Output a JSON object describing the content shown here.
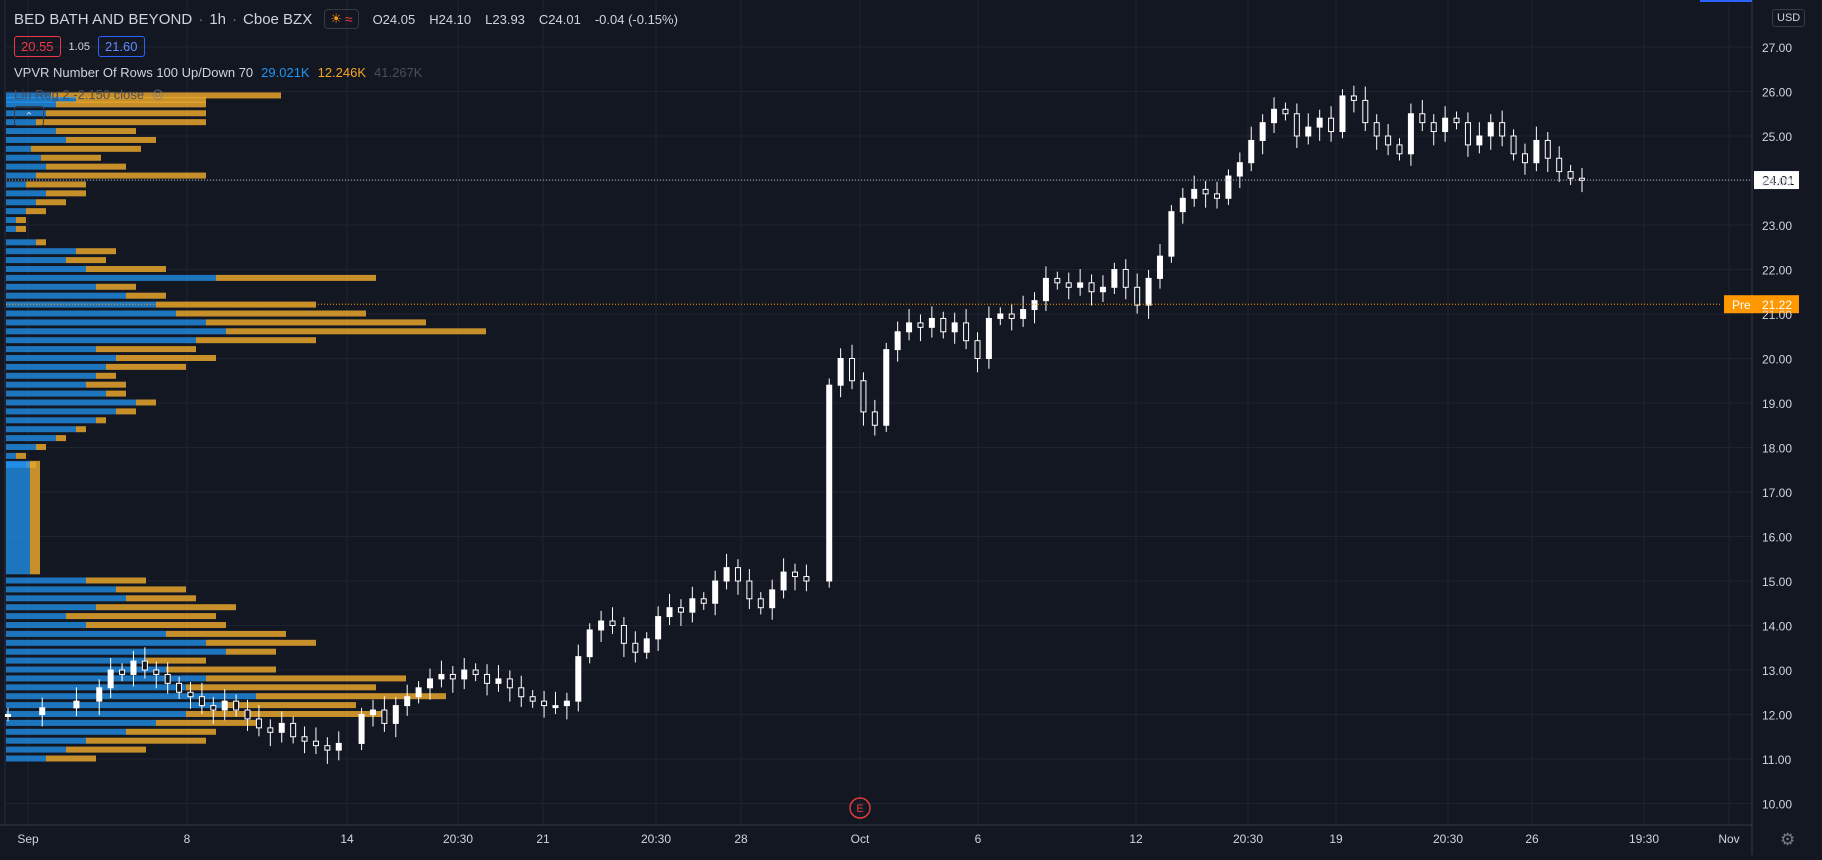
{
  "header": {
    "symbol_name": "BED BATH AND BEYOND",
    "interval": "1h",
    "exchange": "Cboe BZX",
    "ohlc": {
      "open": "O24.05",
      "high": "H24.10",
      "low": "L23.93",
      "close": "C24.01",
      "change": "-0.04 (-0.15%)"
    },
    "bid": "20.55",
    "spread": "1.05",
    "ask": "21.60",
    "session_icons": [
      "sun-icon",
      "wave-icon"
    ]
  },
  "indicators": {
    "vpvr": {
      "label": "VPVR Number Of Rows 100 Up/Down 70",
      "up_volume": "29.021K",
      "down_volume": "12.246K",
      "total_volume": "41.267K"
    },
    "linreg": {
      "label": "Lin Reg 2 -2.150 close",
      "hidden": true
    }
  },
  "price_axis": {
    "currency": "USD",
    "ticks": [
      "27.00",
      "26.00",
      "25.00",
      "24.00",
      "23.00",
      "22.00",
      "21.00",
      "20.00",
      "19.00",
      "18.00",
      "17.00",
      "16.00",
      "15.00",
      "14.00",
      "13.00",
      "12.00",
      "11.00",
      "10.00"
    ],
    "last_price_label": "24.01",
    "pre_label": "Pre",
    "pre_price_label": "21.22"
  },
  "time_axis": {
    "ticks": [
      "Sep",
      "8",
      "14",
      "20:30",
      "21",
      "20:30",
      "28",
      "Oct",
      "6",
      "12",
      "20:30",
      "19",
      "20:30",
      "26",
      "19:30",
      "Nov"
    ]
  },
  "earnings_marker": "E",
  "colors": {
    "background": "#131722",
    "grid": "#1f2330",
    "candle": "#ffffff",
    "vp_up": "#2196f3",
    "vp_down": "#e6a52a",
    "pre_market": "#ff9800",
    "earnings": "#e03c3c"
  },
  "chart_data": {
    "type": "candlestick",
    "title": "BED BATH AND BEYOND · 1h · Cboe BZX",
    "ylim": [
      9.8,
      27.4
    ],
    "last_price": 24.01,
    "pre_market_price": 21.22,
    "close_path": [
      [
        1,
        12.0
      ],
      [
        4,
        12.15
      ],
      [
        7,
        12.3
      ],
      [
        9,
        12.6
      ],
      [
        10,
        13.0
      ],
      [
        11,
        12.9
      ],
      [
        12,
        13.2
      ],
      [
        13,
        13.0
      ],
      [
        14,
        12.9
      ],
      [
        15,
        12.7
      ],
      [
        16,
        12.5
      ],
      [
        17,
        12.4
      ],
      [
        18,
        12.2
      ],
      [
        19,
        12.1
      ],
      [
        20,
        12.3
      ],
      [
        21,
        12.1
      ],
      [
        22,
        11.9
      ],
      [
        23,
        11.7
      ],
      [
        24,
        11.6
      ],
      [
        25,
        11.8
      ],
      [
        26,
        11.5
      ],
      [
        27,
        11.4
      ],
      [
        28,
        11.3
      ],
      [
        29,
        11.2
      ],
      [
        30,
        11.35
      ],
      [
        32,
        12.0
      ],
      [
        33,
        12.1
      ],
      [
        34,
        11.8
      ],
      [
        35,
        12.2
      ],
      [
        36,
        12.4
      ],
      [
        37,
        12.6
      ],
      [
        38,
        12.8
      ],
      [
        39,
        12.9
      ],
      [
        40,
        12.8
      ],
      [
        41,
        13.0
      ],
      [
        42,
        12.9
      ],
      [
        43,
        12.7
      ],
      [
        44,
        12.8
      ],
      [
        45,
        12.6
      ],
      [
        46,
        12.4
      ],
      [
        47,
        12.3
      ],
      [
        48,
        12.2
      ],
      [
        49,
        12.2
      ],
      [
        50,
        12.3
      ],
      [
        51,
        13.3
      ],
      [
        52,
        13.9
      ],
      [
        53,
        14.1
      ],
      [
        54,
        14.0
      ],
      [
        55,
        13.6
      ],
      [
        56,
        13.4
      ],
      [
        57,
        13.7
      ],
      [
        58,
        14.2
      ],
      [
        59,
        14.4
      ],
      [
        60,
        14.3
      ],
      [
        61,
        14.6
      ],
      [
        62,
        14.5
      ],
      [
        63,
        15.0
      ],
      [
        64,
        15.3
      ],
      [
        65,
        15.0
      ],
      [
        66,
        14.6
      ],
      [
        67,
        14.4
      ],
      [
        68,
        14.8
      ],
      [
        69,
        15.2
      ],
      [
        70,
        15.1
      ],
      [
        71,
        15.0
      ],
      [
        73,
        19.4
      ],
      [
        74,
        20.0
      ],
      [
        75,
        19.5
      ],
      [
        76,
        18.8
      ],
      [
        77,
        18.5
      ],
      [
        78,
        20.2
      ],
      [
        79,
        20.6
      ],
      [
        80,
        20.8
      ],
      [
        81,
        20.7
      ],
      [
        82,
        20.9
      ],
      [
        83,
        20.6
      ],
      [
        84,
        20.8
      ],
      [
        85,
        20.4
      ],
      [
        86,
        20.0
      ],
      [
        87,
        20.9
      ],
      [
        88,
        21.0
      ],
      [
        89,
        20.9
      ],
      [
        90,
        21.1
      ],
      [
        91,
        21.3
      ],
      [
        92,
        21.8
      ],
      [
        93,
        21.7
      ],
      [
        94,
        21.6
      ],
      [
        95,
        21.7
      ],
      [
        96,
        21.5
      ],
      [
        97,
        21.6
      ],
      [
        98,
        22.0
      ],
      [
        99,
        21.6
      ],
      [
        100,
        21.2
      ],
      [
        101,
        21.8
      ],
      [
        102,
        22.3
      ],
      [
        103,
        23.3
      ],
      [
        104,
        23.6
      ],
      [
        105,
        23.8
      ],
      [
        106,
        23.7
      ],
      [
        107,
        23.6
      ],
      [
        108,
        24.1
      ],
      [
        109,
        24.4
      ],
      [
        110,
        24.9
      ],
      [
        111,
        25.3
      ],
      [
        112,
        25.6
      ],
      [
        113,
        25.5
      ],
      [
        114,
        25.0
      ],
      [
        115,
        25.2
      ],
      [
        116,
        25.4
      ],
      [
        117,
        25.1
      ],
      [
        118,
        25.9
      ],
      [
        119,
        25.8
      ],
      [
        120,
        25.3
      ],
      [
        121,
        25.0
      ],
      [
        122,
        24.8
      ],
      [
        123,
        24.6
      ],
      [
        124,
        25.5
      ],
      [
        125,
        25.3
      ],
      [
        126,
        25.1
      ],
      [
        127,
        25.4
      ],
      [
        128,
        25.3
      ],
      [
        129,
        24.8
      ],
      [
        130,
        25.0
      ],
      [
        131,
        25.3
      ],
      [
        132,
        25.0
      ],
      [
        133,
        24.6
      ],
      [
        134,
        24.4
      ],
      [
        135,
        24.9
      ],
      [
        136,
        24.5
      ],
      [
        137,
        24.2
      ],
      [
        138,
        24.05
      ],
      [
        139,
        24.01
      ]
    ],
    "volume_profile_note": "Visible range volume profile (up=blue, down=orange) on left side"
  }
}
